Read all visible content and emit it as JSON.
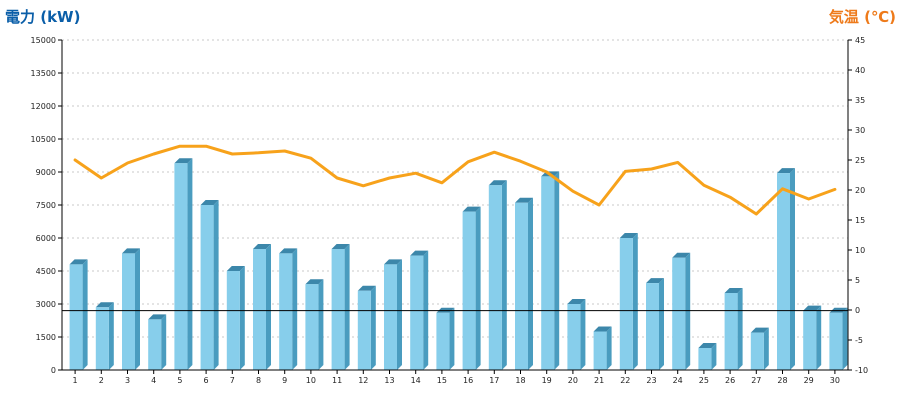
{
  "chart_data": {
    "type": "bar",
    "left_axis_title": "電力 (kW)",
    "right_axis_title": "気温 (℃)",
    "categories": [
      "1",
      "2",
      "3",
      "4",
      "5",
      "6",
      "7",
      "8",
      "9",
      "10",
      "11",
      "12",
      "13",
      "14",
      "15",
      "16",
      "17",
      "18",
      "19",
      "20",
      "21",
      "22",
      "23",
      "24",
      "25",
      "26",
      "27",
      "28",
      "29",
      "30"
    ],
    "left_axis": {
      "min": 0,
      "max": 15000,
      "ticks": [
        "0",
        "1500",
        "3000",
        "4500",
        "6000",
        "7500",
        "9000",
        "10500",
        "12000",
        "13500",
        "15000"
      ]
    },
    "right_axis": {
      "min": -10,
      "max": 45,
      "ticks": [
        "-10",
        "-5",
        "0",
        "5",
        "10",
        "15",
        "20",
        "25",
        "30",
        "35",
        "40",
        "45"
      ]
    },
    "grid": true,
    "reference_line": {
      "axis": "left",
      "value": 2700
    },
    "series": [
      {
        "type": "bar",
        "axis": "left",
        "values": [
          4800,
          2850,
          5300,
          2300,
          9400,
          7500,
          4500,
          5500,
          5300,
          3900,
          5500,
          3600,
          4800,
          5200,
          2600,
          7200,
          8400,
          7600,
          8800,
          3000,
          1750,
          6000,
          3950,
          5100,
          1000,
          3500,
          1700,
          8950,
          2700,
          2600
        ]
      },
      {
        "type": "line",
        "axis": "right",
        "values": [
          25,
          22,
          24.5,
          26,
          27.3,
          27.3,
          26,
          26.2,
          26.5,
          25.3,
          22,
          20.7,
          22,
          22.8,
          21.2,
          24.7,
          26.3,
          24.8,
          23,
          19.8,
          17.5,
          23.1,
          23.5,
          24.6,
          20.8,
          18.8,
          16,
          20.2,
          18.5,
          20.1
        ]
      }
    ],
    "colors": {
      "bar_front": "#87ceeb",
      "bar_side": "#4a9cbf",
      "bar_top": "#3c87aa",
      "line": "#f7a21b",
      "left_title": "#0a5ea8",
      "right_title": "#ee7a1a",
      "grid": "#c8c8c8",
      "reference": "#000000"
    }
  }
}
